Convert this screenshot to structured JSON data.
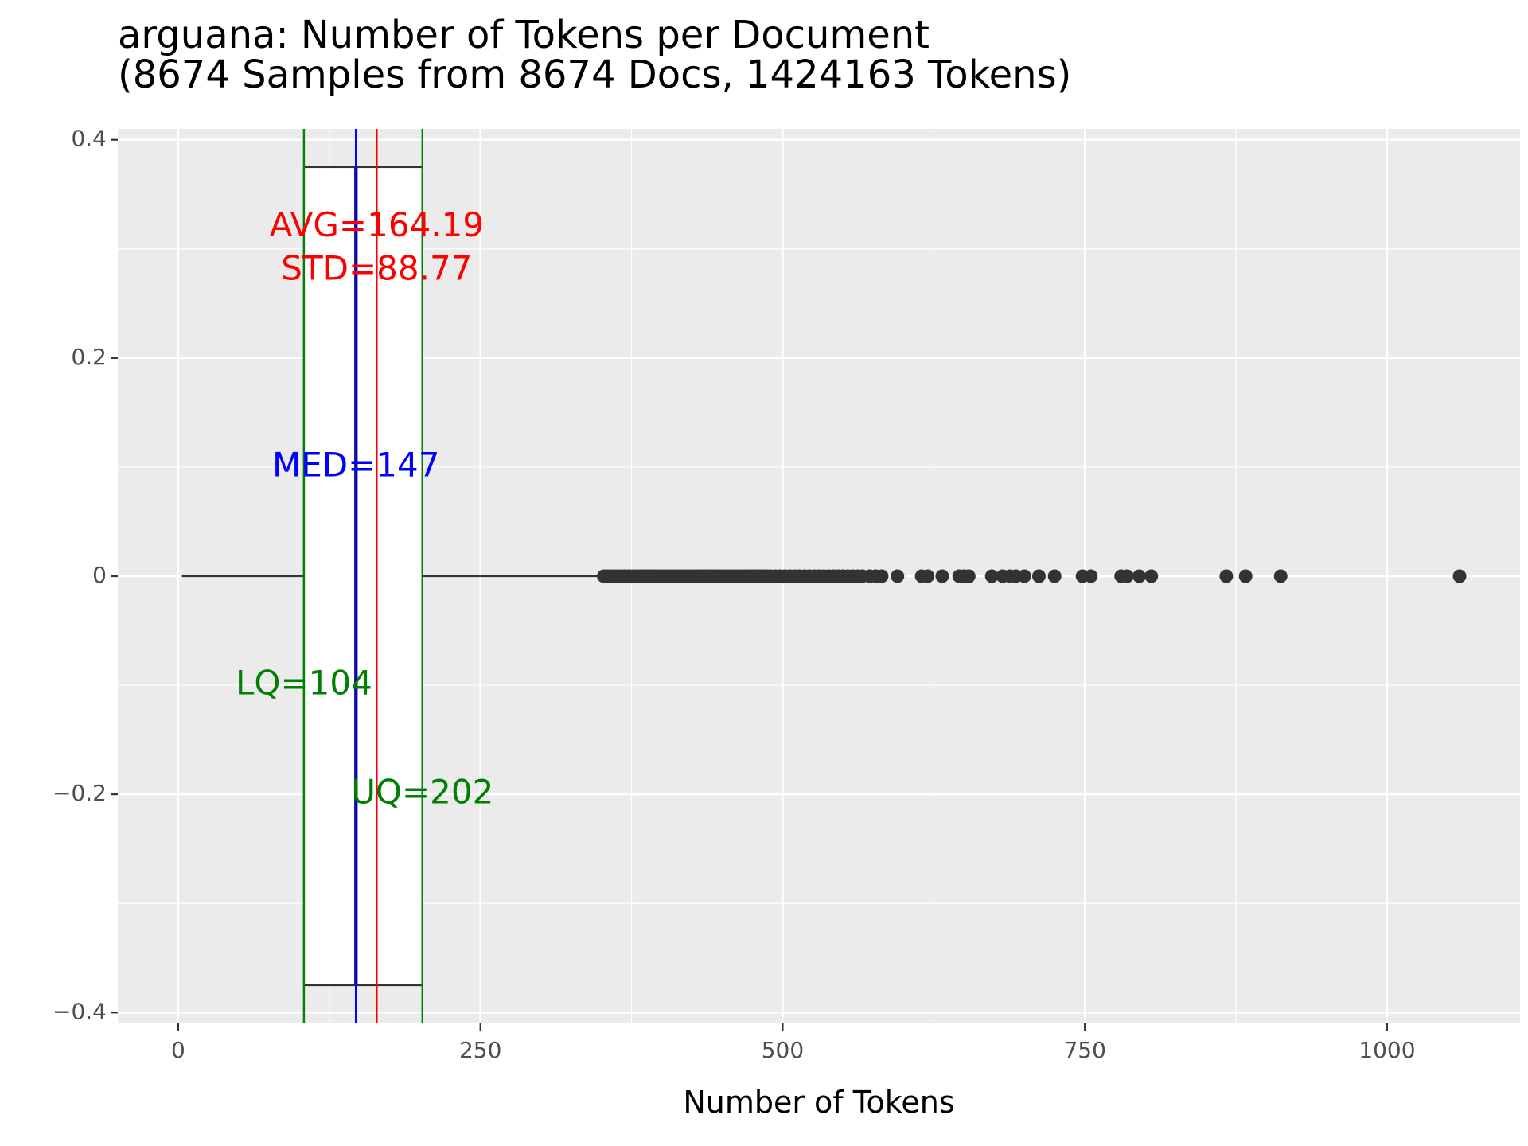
{
  "chart_data": {
    "type": "boxplot",
    "title": "arguana: Number of Tokens per Document",
    "subtitle": "(8674 Samples from 8674 Docs, 1424163 Tokens)",
    "xlabel": "Number of Tokens",
    "ylabel": "",
    "xlim": [
      -50,
      1110
    ],
    "ylim": [
      -0.41,
      0.41
    ],
    "x_ticks": [
      0,
      250,
      500,
      750,
      1000
    ],
    "x_tick_labels": [
      "0",
      "250",
      "500",
      "750",
      "1000"
    ],
    "y_ticks": [
      0.4,
      0.2,
      0,
      -0.2,
      -0.4
    ],
    "y_tick_labels": [
      "0.4",
      "0.2",
      "0",
      "−0.2",
      "−0.4"
    ],
    "grid": true,
    "background_color": "#ebebeb",
    "box": {
      "min": 3,
      "lower_quartile": 104,
      "median": 147,
      "upper_quartile": 202,
      "whisker_max": 350,
      "half_height": 0.375
    },
    "outliers": [
      352,
      355,
      358,
      361,
      364,
      367,
      370,
      373,
      376,
      379,
      382,
      385,
      388,
      391,
      394,
      397,
      400,
      403,
      406,
      409,
      412,
      415,
      418,
      421,
      424,
      427,
      430,
      433,
      436,
      439,
      442,
      445,
      448,
      451,
      454,
      457,
      460,
      463,
      466,
      469,
      472,
      475,
      478,
      481,
      484,
      487,
      490,
      494,
      498,
      502,
      506,
      510,
      514,
      518,
      522,
      526,
      530,
      534,
      538,
      542,
      546,
      550,
      554,
      558,
      562,
      566,
      572,
      577,
      582,
      595,
      615,
      620,
      632,
      646,
      650,
      654,
      673,
      682,
      688,
      693,
      700,
      712,
      725,
      748,
      755,
      780,
      785,
      795,
      805,
      867,
      883,
      912,
      1060
    ],
    "reference_lines": [
      {
        "name": "LQ",
        "x": 104,
        "color": "#008000"
      },
      {
        "name": "UQ",
        "x": 202,
        "color": "#008000"
      },
      {
        "name": "MED",
        "x": 147,
        "color": "#0000ff"
      },
      {
        "name": "AVG",
        "x": 164.19,
        "color": "#ff0000"
      }
    ],
    "annotations": [
      {
        "text": "AVG=164.19",
        "x": 164.19,
        "y": 0.32,
        "color": "#ff0000"
      },
      {
        "text": "STD=88.77",
        "x": 164.19,
        "y": 0.28,
        "color": "#ff0000"
      },
      {
        "text": "MED=147",
        "x": 147,
        "y": 0.1,
        "color": "#0000ff"
      },
      {
        "text": "LQ=104",
        "x": 104,
        "y": -0.1,
        "color": "#008000"
      },
      {
        "text": "UQ=202",
        "x": 202,
        "y": -0.2,
        "color": "#008000"
      }
    ],
    "colors": {
      "box_line": "#333333",
      "box_fill": "#ffffff",
      "outlier": "#333333",
      "grid": "#ffffff"
    }
  }
}
